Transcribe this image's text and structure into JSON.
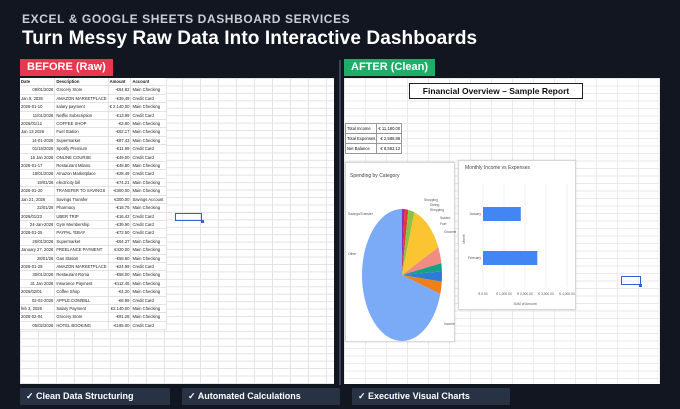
{
  "header": {
    "eyebrow": "EXCEL & GOOGLE SHEETS DASHBOARD SERVICES",
    "headline": "Turn Messy Raw Data Into Interactive Dashboards"
  },
  "before": {
    "tag": "BEFORE (Raw)",
    "columns": [
      "Date",
      "Description",
      "Amount",
      "Account"
    ],
    "rows": [
      [
        "08/01/2026",
        "Grocery Store",
        "-€64.82",
        "Main Checking"
      ],
      [
        "Jan 9, 2026",
        "AMAZON MARKETPLACE",
        "-€39,49",
        "Credit Card"
      ],
      [
        "2026-01-10",
        "salary payment",
        "€ 2.140,00",
        "Main Checking"
      ],
      [
        "11/01/2026",
        "Netflix Subscription",
        "-€13.99",
        "Credit Card"
      ],
      [
        "2026/01/12",
        "COFFEE SHOP",
        "-€3.80",
        "Main Checking"
      ],
      [
        "Jan 13 2026",
        "Fuel Station",
        "-€62.17",
        "Main Checking"
      ],
      [
        "14-01-2026",
        "Supermarket",
        "-€87.43",
        "Main Checking"
      ],
      [
        "01/15/2026",
        "Spotify Premium",
        "-€11.99",
        "Credit Card"
      ],
      [
        "16 Jan 2026",
        "ONLINE COURSE",
        "-€49.00",
        "Credit Card"
      ],
      [
        "2026-01-17",
        "Restaurant Milano",
        "-€48.80",
        "Main Checking"
      ],
      [
        "18/01/2026",
        "Amazon Marketplace",
        "-€28.49",
        "Credit Card"
      ],
      [
        "19/01/26",
        "electricity bill",
        "-€74.21",
        "Main Checking"
      ],
      [
        "2026-01-20",
        "TRANSFER TO SAVINGS",
        "-€300.00",
        "Main Checking"
      ],
      [
        "Jan 21, 2026",
        "Savings Transfer",
        "€300.00",
        "Savings Account"
      ],
      [
        "22/01/26",
        "Pharmacy",
        "-€18.75",
        "Main Checking"
      ],
      [
        "2026/01/23",
        "UBER TRIP",
        "-€16.42",
        "Credit Card"
      ],
      [
        "24-Jan-2026",
        "Gym Membership",
        "-€39.90",
        "Credit Card"
      ],
      [
        "2026-01-25",
        "PAYPAL *EBAY",
        "-€72.50",
        "Credit Card"
      ],
      [
        "26/01/2026",
        "Supermarket",
        "-€64.37",
        "Main Checking"
      ],
      [
        "January 27, 2026",
        "FREELANCE PAYMENT",
        "€420.00",
        "Main Checking"
      ],
      [
        "28/01/26",
        "Gas Station",
        "-€55.60",
        "Main Checking"
      ],
      [
        "2026-01-29",
        "AMAZON MARKETPLACE",
        "-€24.99",
        "Credit Card"
      ],
      [
        "30/01/2026",
        "Restaurant Roma",
        "-€58.00",
        "Main Checking"
      ],
      [
        "31 Jan 2026",
        "Insurance Payment",
        "-€112.45",
        "Main Checking"
      ],
      [
        "2026/02/01",
        "Coffee Shop",
        "-€4.20",
        "Main Checking"
      ],
      [
        "02-02-2026",
        "APPLE.COM/BILL",
        "-€6.99",
        "Credit Card"
      ],
      [
        "feb 3, 2026",
        "Salary Payment",
        "€2.140.00",
        "Main Checking"
      ],
      [
        "2026-02-04",
        "Grocery Store",
        "-€91.28",
        "Main Checking"
      ],
      [
        "05/02/2026",
        "HOTEL BOOKING",
        "-€185.00",
        "Credit Card"
      ]
    ]
  },
  "after": {
    "tag": "AFTER (Clean)",
    "report_title": "Financial Overview – Sample Report",
    "summary": [
      {
        "label": "Total Income",
        "value": "€ 11,180.00"
      },
      {
        "label": "Total Expenses",
        "value": "€ 2,586.88"
      },
      {
        "label": "Net Balance",
        "value": "€ 8,593.12"
      }
    ]
  },
  "chart_data": [
    {
      "type": "pie",
      "title": "Spending by Category",
      "labels": [
        "Shopping",
        "Dining",
        "Shopping",
        "Savings/Transfer",
        "Other",
        "Subscr.",
        "Fuel",
        "Groceries",
        "Income"
      ],
      "values": [
        1,
        1.5,
        2.5,
        13,
        4,
        2,
        2.5,
        3,
        70
      ],
      "colors": [
        "#9c27b0",
        "#e53935",
        "#8bc34a",
        "#fbc531",
        "#f28b82",
        "#16a085",
        "#2e7bd6",
        "#ef7f1a",
        "#7baaf7"
      ]
    },
    {
      "type": "bar",
      "title": "Monthly Income vs Expenses",
      "categories": [
        "January",
        "February"
      ],
      "values": [
        1800,
        2586
      ],
      "xlim": [
        0,
        4000
      ],
      "xticks": [
        "€ 0.00",
        "€ 1,000.00",
        "€ 2,000.00",
        "€ 3,000.00",
        "€ 4,000.00"
      ],
      "xlabel": "SUM of Amount",
      "ylabel": "Month",
      "color": "#4285f4"
    }
  ],
  "badges": [
    "✓ Clean Data Structuring",
    "✓ Automated Calculations",
    "✓ Executive Visual Charts"
  ]
}
